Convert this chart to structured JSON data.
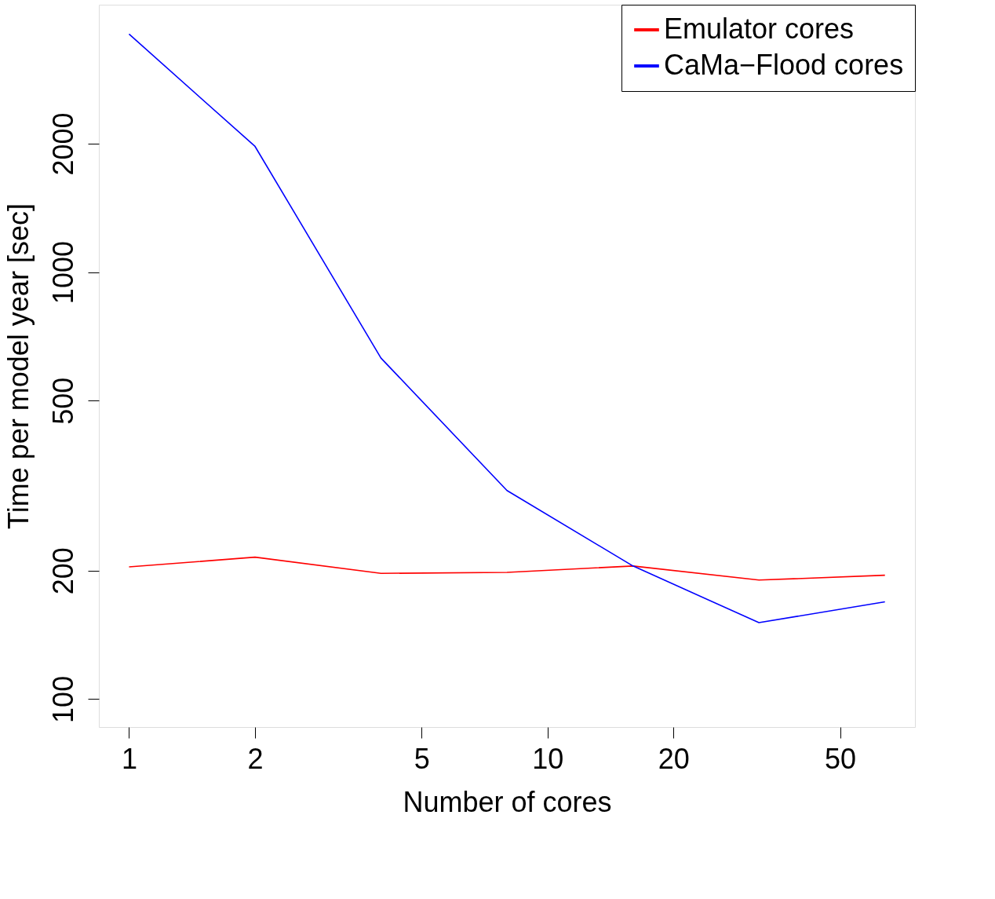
{
  "chart_data": {
    "type": "line",
    "xlabel": "Number of cores",
    "ylabel": "Time per model year [sec]",
    "x": [
      1,
      2,
      4,
      8,
      16,
      32,
      64
    ],
    "series": [
      {
        "name": "Emulator cores",
        "color": "#ff0000",
        "values": [
          204,
          215,
          197,
          198,
          205,
          190,
          195
        ]
      },
      {
        "name": "CaMa−Flood cores",
        "color": "#0000ff",
        "values": [
          3610,
          1970,
          629,
          308,
          205,
          151,
          169
        ]
      }
    ],
    "log": "xy",
    "xlim": [
      0.847,
      75.5
    ],
    "ylim": [
      86,
      4230
    ],
    "xticks": [
      1,
      2,
      5,
      10,
      20,
      50
    ],
    "yticks": [
      100,
      200,
      500,
      1000,
      2000
    ],
    "grid": false,
    "legend": "top right",
    "marker": "none",
    "line_style": "solid"
  }
}
